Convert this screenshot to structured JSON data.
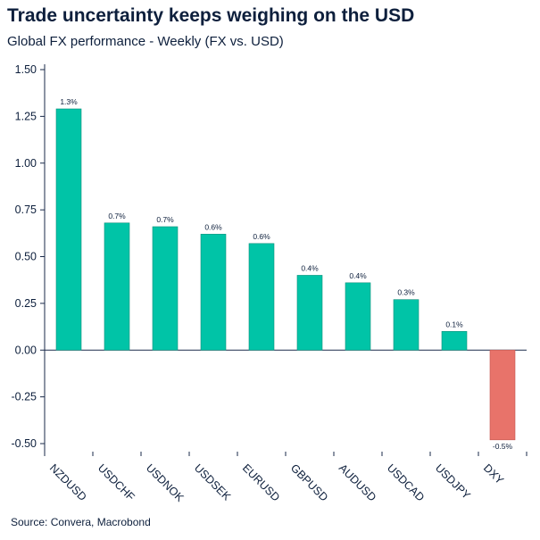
{
  "header": {
    "title": "Trade uncertainty keeps weighing on the USD",
    "subtitle": "Global FX performance - Weekly (FX vs. USD)"
  },
  "footer": {
    "source": "Source: Convera, Macrobond"
  },
  "colors": {
    "positive": "#00c4a7",
    "negative": "#e8736a",
    "axis": "#1a2a4a"
  },
  "chart_data": {
    "type": "bar",
    "title": "Trade uncertainty keeps weighing on the USD",
    "subtitle": "Global FX performance - Weekly (FX vs. USD)",
    "xlabel": "",
    "ylabel": "",
    "ylim": [
      -0.5,
      1.5
    ],
    "yticks": [
      1.5,
      1.25,
      1.0,
      0.75,
      0.5,
      0.25,
      0.0,
      -0.25,
      -0.5
    ],
    "ytick_labels": [
      "1.50",
      "1.25",
      "1.00",
      "0.75",
      "0.50",
      "0.25",
      "0.00",
      "-0.25",
      "-0.50"
    ],
    "grid": false,
    "categories": [
      "NZDUSD",
      "USDCHF",
      "USDNOK",
      "USDSEK",
      "EURUSD",
      "GBPUSD",
      "AUDUSD",
      "USDCAD",
      "USDJPY",
      "DXY"
    ],
    "values": [
      1.29,
      0.68,
      0.66,
      0.62,
      0.57,
      0.4,
      0.36,
      0.27,
      0.1,
      -0.48
    ],
    "data_labels": [
      "1.3%",
      "0.7%",
      "0.7%",
      "0.6%",
      "0.6%",
      "0.4%",
      "0.4%",
      "0.3%",
      "0.1%",
      "-0.5%"
    ]
  }
}
